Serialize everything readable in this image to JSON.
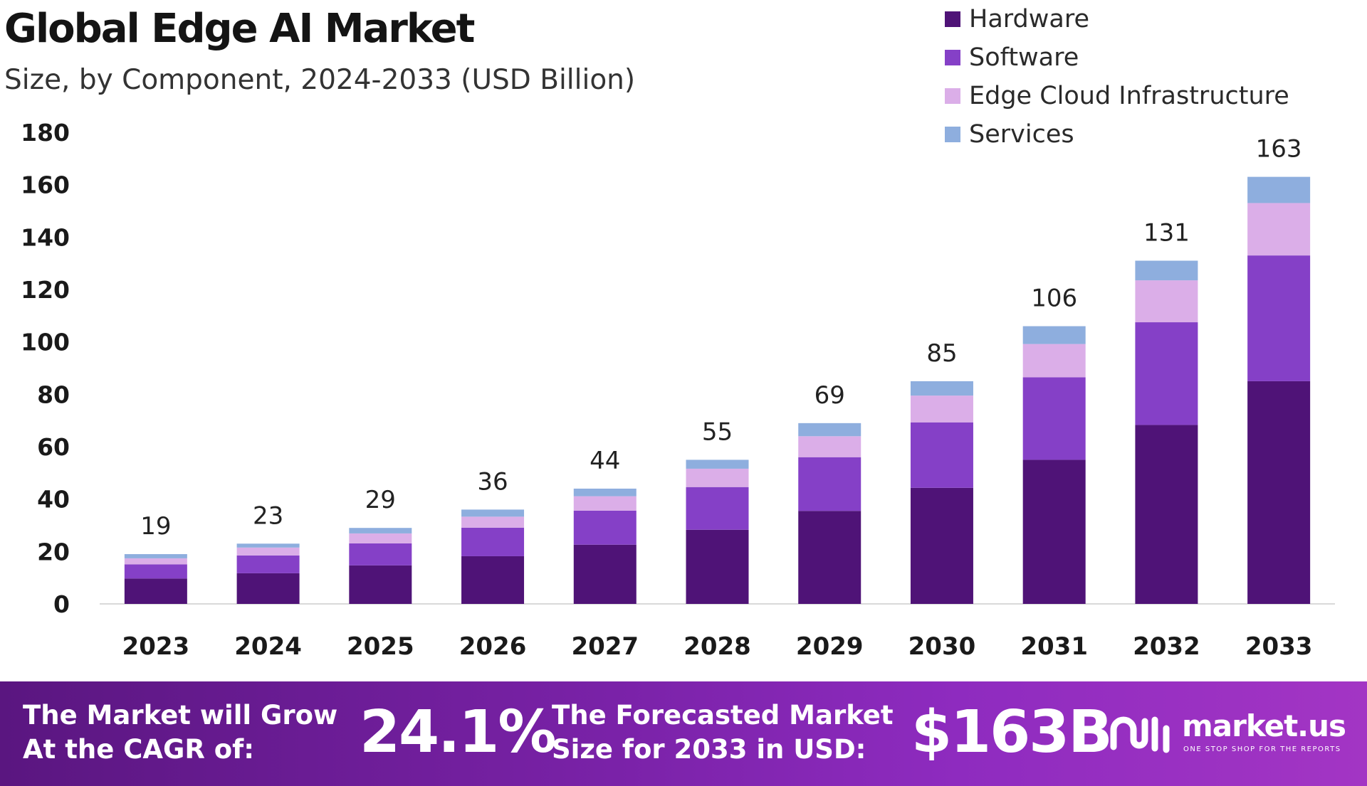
{
  "header": {
    "title": "Global Edge AI Market",
    "subtitle": "Size, by Component, 2024-2033 (USD Billion)"
  },
  "legend": [
    {
      "label": "Hardware",
      "color": "#4f1377"
    },
    {
      "label": "Software",
      "color": "#8540c7"
    },
    {
      "label": "Edge Cloud Infrastructure",
      "color": "#dbaee8"
    },
    {
      "label": "Services",
      "color": "#8eaede"
    }
  ],
  "chart_data": {
    "type": "bar",
    "stacked": true,
    "title": "Global Edge AI Market",
    "subtitle": "Size, by Component, 2024-2033 (USD Billion)",
    "categories": [
      "2023",
      "2024",
      "2025",
      "2026",
      "2027",
      "2028",
      "2029",
      "2030",
      "2031",
      "2032",
      "2033"
    ],
    "series": [
      {
        "name": "Hardware",
        "color": "#4f1377",
        "values": [
          9.7,
          11.7,
          14.7,
          18.2,
          22.6,
          28.3,
          35.5,
          44.3,
          55.0,
          68.3,
          85.0
        ]
      },
      {
        "name": "Software",
        "color": "#8540c7",
        "values": [
          5.4,
          6.8,
          8.4,
          10.9,
          13.0,
          16.3,
          20.5,
          25.0,
          31.5,
          39.2,
          48.0
        ]
      },
      {
        "name": "Edge Cloud Infrastructure",
        "color": "#dbaee8",
        "values": [
          2.3,
          3.0,
          3.8,
          4.2,
          5.5,
          7.0,
          8.0,
          10.2,
          12.7,
          16.0,
          20.0
        ]
      },
      {
        "name": "Services",
        "color": "#8eaede",
        "values": [
          1.6,
          1.5,
          2.1,
          2.7,
          2.9,
          3.4,
          5.0,
          5.5,
          6.8,
          7.5,
          10.0
        ]
      }
    ],
    "totals": [
      19,
      23,
      29,
      36,
      44,
      55,
      69,
      85,
      106,
      131,
      163
    ],
    "ylim": [
      0,
      180
    ],
    "yticks": [
      0,
      20,
      40,
      60,
      80,
      100,
      120,
      140,
      160,
      180
    ],
    "grid": false,
    "legend_position": "top-right"
  },
  "footer": {
    "cagr_label_line1": "The Market will Grow",
    "cagr_label_line2": "At the CAGR of:",
    "cagr_value": "24.1%",
    "forecast_label_line1": "The Forecasted Market",
    "forecast_label_line2": "Size for 2033 in USD:",
    "forecast_value": "$163B",
    "brand_name": "market.us",
    "brand_tagline": "ONE STOP SHOP FOR THE REPORTS"
  }
}
